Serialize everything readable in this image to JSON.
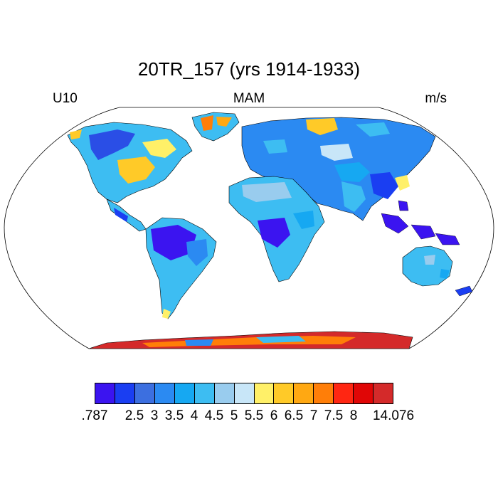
{
  "title": "20TR_157 (yrs 1914-1933)",
  "left_string": "U10",
  "center_string": "MAM",
  "right_string": "m/s",
  "colorbar": {
    "colors": [
      "#3b14f0",
      "#1a3ef2",
      "#3c6fe0",
      "#2b8af2",
      "#16a8f2",
      "#3dbdf2",
      "#99ccee",
      "#c8e6f8",
      "#fff068",
      "#ffca28",
      "#ffa812",
      "#ff7e08",
      "#ff2612",
      "#e00606",
      "#d42a2a"
    ],
    "labels": [
      ".787",
      "2.5",
      "3",
      "3.5",
      "4",
      "4.5",
      "5",
      "5.5",
      "6",
      "6.5",
      "7",
      "7.5",
      "8",
      "14.076"
    ],
    "label_boundaries": [
      0,
      2,
      3,
      4,
      5,
      6,
      7,
      8,
      9,
      10,
      11,
      12,
      13,
      15
    ]
  }
}
